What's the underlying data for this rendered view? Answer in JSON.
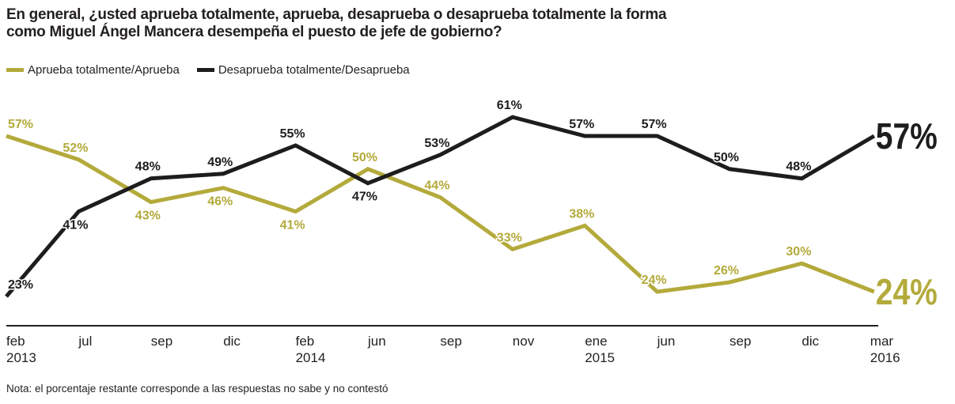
{
  "chart_data": {
    "type": "line",
    "title": "En general, ¿usted aprueba totalmente, aprueba, desaprueba o desaprueba totalmente la forma como Miguel Ángel Mancera desempeña el puesto de jefe de gobierno?",
    "title_lines": [
      "En general, ¿usted aprueba totalmente, aprueba, desaprueba o desaprueba totalmente la forma",
      "como Miguel Ángel Mancera desempeña el puesto de jefe de gobierno?"
    ],
    "categories": [
      [
        "feb",
        "2013"
      ],
      [
        "jul",
        ""
      ],
      [
        "sep",
        ""
      ],
      [
        "dic",
        ""
      ],
      [
        "feb",
        "2014"
      ],
      [
        "jun",
        ""
      ],
      [
        "sep",
        ""
      ],
      [
        "nov",
        ""
      ],
      [
        "ene",
        "2015"
      ],
      [
        "jun",
        ""
      ],
      [
        "sep",
        ""
      ],
      [
        "dic",
        ""
      ],
      [
        "mar",
        "2016"
      ]
    ],
    "series": [
      {
        "name": "Aprueba totalmente/Aprueba",
        "color": "#b3aa3b",
        "values": [
          57,
          52,
          43,
          46,
          41,
          50,
          44,
          33,
          38,
          24,
          26,
          30,
          24
        ]
      },
      {
        "name": "Desaprueba totalmente/Desaprueba",
        "color": "#1e1c1c",
        "values": [
          23,
          41,
          48,
          49,
          55,
          47,
          53,
          61,
          57,
          57,
          50,
          48,
          57
        ]
      }
    ],
    "unit": "%",
    "legend_position": "top-left",
    "grid": false,
    "note": "Nota: el porcentaje restante corresponde a las respuestas no sabe y no contestó"
  }
}
